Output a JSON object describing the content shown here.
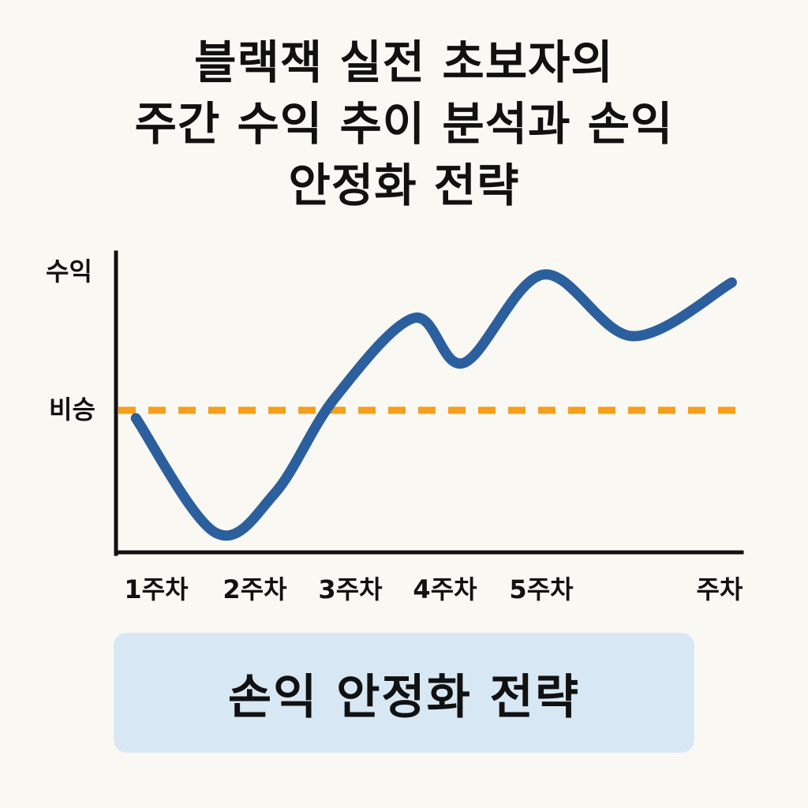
{
  "title_lines": [
    "블랙잭 실전 초보자의",
    "주간 수익 추이 분석과 손익",
    "안정화 전략"
  ],
  "chart_data": {
    "type": "line",
    "ylabel": "수익",
    "x_ticks": [
      "1주차",
      "2주차",
      "3주차",
      "4주차",
      "5주차",
      "주차"
    ],
    "reference_line": {
      "label": "비승",
      "value": 0,
      "style": "dashed",
      "color": "#f59f1b"
    },
    "series": [
      {
        "color": "#2c5f9e",
        "x": [
          0.2,
          1.0,
          1.6,
          2.2,
          3.0,
          3.5,
          4.3,
          5.2,
          6.2
        ],
        "y": [
          -0.1,
          -1.55,
          -1.05,
          0.15,
          1.17,
          0.6,
          1.72,
          0.94,
          1.62
        ]
      }
    ],
    "xlim": [
      0,
      6.3
    ],
    "ylim": [
      -1.8,
      2.0
    ],
    "grid": false,
    "legend": "none"
  },
  "banner": {
    "text": "손익 안정화 전략"
  },
  "colors": {
    "background": "#faf8f3",
    "line": "#2c5f9e",
    "breakeven": "#f59f1b",
    "axis": "#111111",
    "banner": "#d7e8f4"
  }
}
